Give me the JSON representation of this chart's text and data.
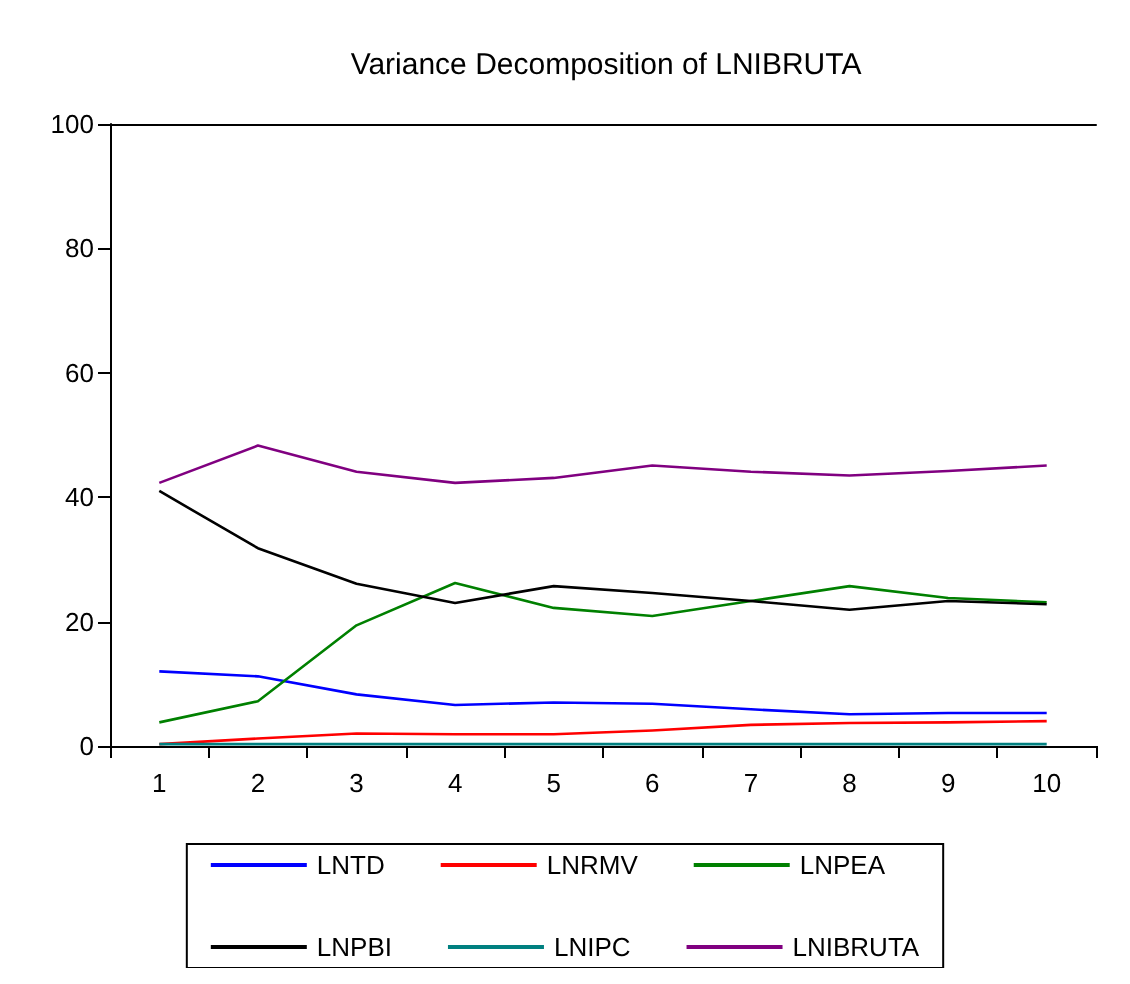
{
  "chart_data": {
    "type": "line",
    "title": "Variance Decomposition of LNIBRUTA",
    "categories": [
      "1",
      "2",
      "3",
      "4",
      "5",
      "6",
      "7",
      "8",
      "9",
      "10"
    ],
    "ylim": [
      0,
      100
    ],
    "yticks": [
      0,
      20,
      40,
      60,
      80,
      100
    ],
    "grid": false,
    "legend": "bottom",
    "marker": "none",
    "line_style": "solid",
    "series": [
      {
        "name": "LNTD",
        "color": "#0000ff",
        "values": [
          12,
          11.2,
          8.3,
          6.6,
          7,
          6.8,
          5.9,
          5.1,
          5.3,
          5.3
        ]
      },
      {
        "name": "LNRMV",
        "color": "#ff0000",
        "values": [
          0.3,
          1.2,
          2,
          1.9,
          1.9,
          2.5,
          3.4,
          3.7,
          3.8,
          4
        ]
      },
      {
        "name": "LNPEA",
        "color": "#008000",
        "values": [
          3.8,
          7.2,
          19.4,
          26.2,
          22.2,
          20.9,
          23.3,
          25.7,
          23.8,
          23.1
        ]
      },
      {
        "name": "LNPBI",
        "color": "#000000",
        "values": [
          41,
          31.8,
          26.1,
          23,
          25.7,
          24.6,
          23.3,
          21.9,
          23.3,
          22.8
        ]
      },
      {
        "name": "LNIPC",
        "color": "#008080",
        "values": [
          0.3,
          0.3,
          0.3,
          0.3,
          0.3,
          0.3,
          0.3,
          0.3,
          0.3,
          0.3
        ]
      },
      {
        "name": "LNIBRUTA",
        "color": "#800080",
        "values": [
          42.3,
          48.3,
          44.1,
          42.3,
          43.1,
          45.1,
          44.1,
          43.5,
          44.2,
          45.1
        ]
      }
    ]
  }
}
